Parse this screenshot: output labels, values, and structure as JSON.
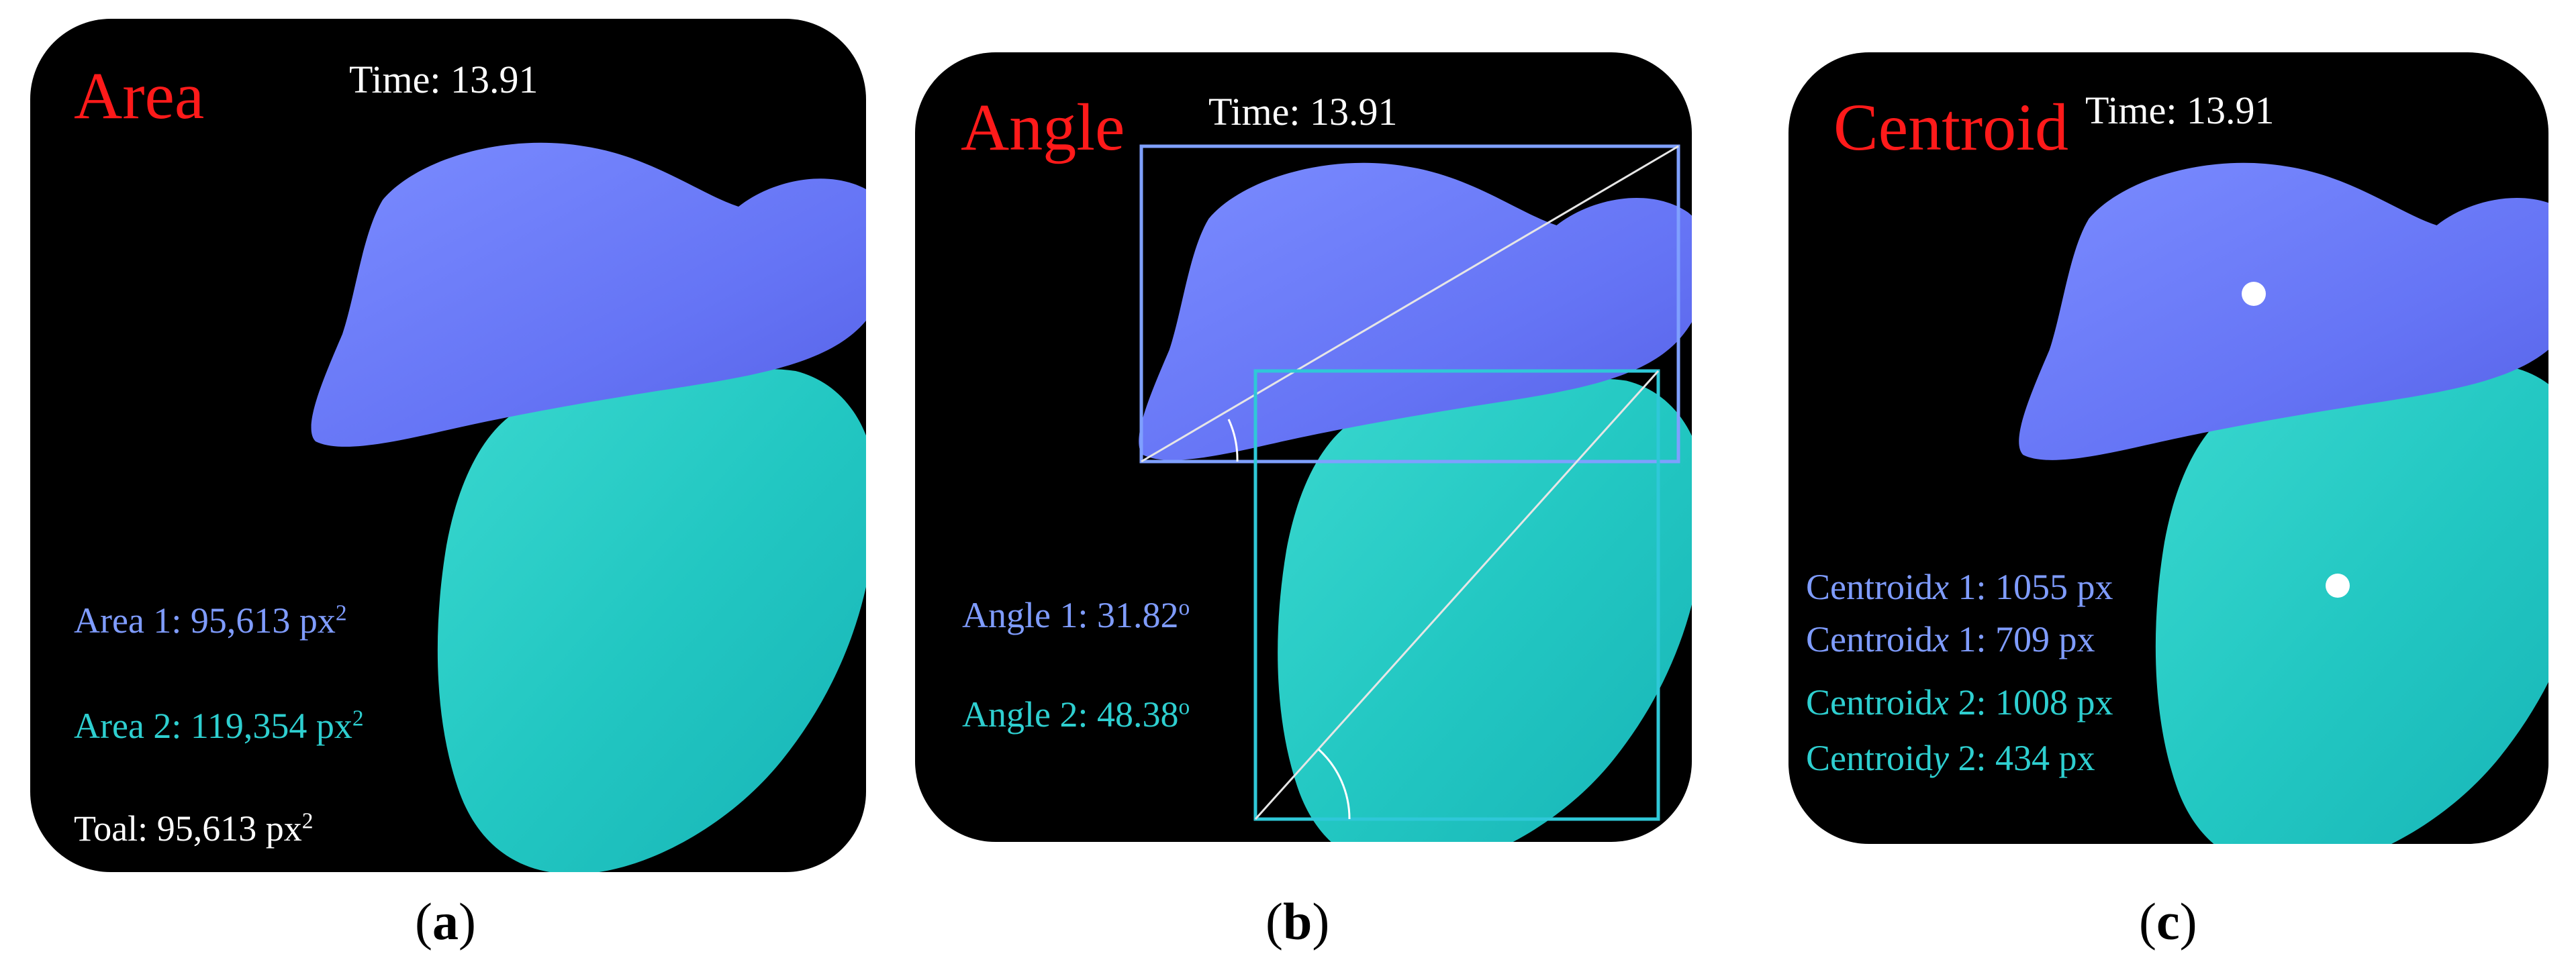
{
  "panels": {
    "a": {
      "heading": "Area",
      "time": "Time: 13.91",
      "area1_label": "Area 1: 95,613 px",
      "area2_label": "Area 2: 119,354 px",
      "total_label": "Toal: 95,613 px",
      "unit_exponent": "2",
      "caption_letter": "a"
    },
    "b": {
      "heading": "Angle",
      "time": "Time: 13.91",
      "angle1_label": "Angle 1: 31.82",
      "angle2_label": "Angle 2: 48.38",
      "degree_mark": "o",
      "caption_letter": "b"
    },
    "c": {
      "heading": "Centroid",
      "time": "Time: 13.91",
      "centroid_rows": [
        {
          "prefix": "Centroid",
          "axis": "x",
          "rest": " 1: 1055 px"
        },
        {
          "prefix": "Centroid",
          "axis": "x",
          "rest": " 1: 709 px"
        },
        {
          "prefix": "Centroid",
          "axis": "x",
          "rest": " 2: 1008 px"
        },
        {
          "prefix": "Centroid",
          "axis": "y",
          "rest": " 2: 434 px"
        }
      ],
      "caption_letter": "c"
    }
  },
  "colors": {
    "heading": "#ff1a1a",
    "leaf1": "#6b7cff",
    "leaf2": "#22c9c4",
    "label_blue": "#7f9cff",
    "label_cyan": "#2ecfd0",
    "bbox_blue": "#7fa0ff",
    "bbox_cyan": "#2fc8d8"
  }
}
